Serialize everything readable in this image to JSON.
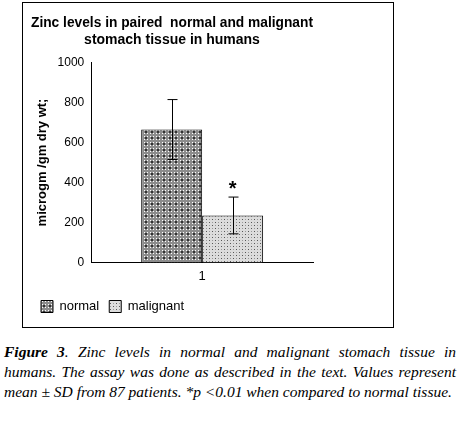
{
  "chart_data": {
    "type": "bar",
    "title": [
      "Zinc levels in paired  normal and malignant",
      "stomach tissue in humans"
    ],
    "y_label": "microgm /gm dry wt;",
    "categories": [
      "1"
    ],
    "series": [
      {
        "name": "normal",
        "color": "#8c8c8c",
        "values": [
          665
        ],
        "error": [
          150
        ]
      },
      {
        "name": "malignant",
        "color": "#9a9a9a",
        "values": [
          235
        ],
        "error": [
          92
        ]
      }
    ],
    "annotations": [
      {
        "text": "*",
        "series": "malignant"
      }
    ],
    "ylim": [
      0,
      1000
    ],
    "yticks": [
      0,
      200,
      400,
      600,
      800,
      1000
    ],
    "grid": false,
    "legend": "bottom"
  },
  "caption_label": "Figure 3",
  "caption": ". Zinc levels in normal and malignant stomach tissue in humans. The assay was  done as described in the text. Values represent mean ± SD from 87 patients. *p <0.01  when compared to normal tissue."
}
